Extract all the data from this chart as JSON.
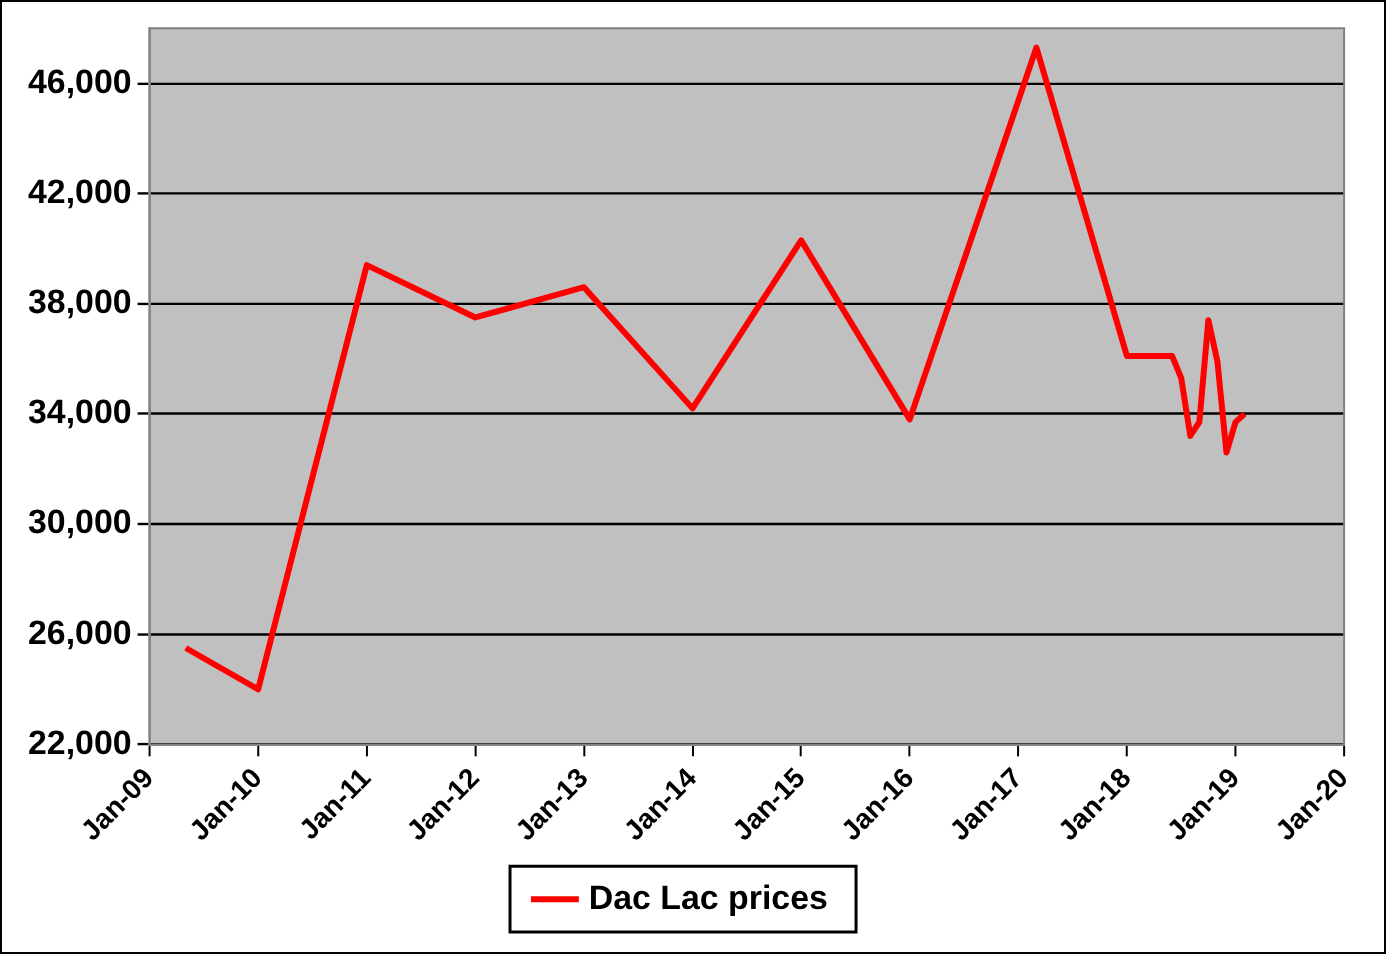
{
  "chart_data": {
    "type": "line",
    "legend": "bottom",
    "grid": "y",
    "marker": "none",
    "line_style": "solid",
    "x": [
      "2009-05",
      "2010-01",
      "2011-01",
      "2012-01",
      "2013-01",
      "2014-01",
      "2015-01",
      "2016-01",
      "2017-03",
      "2018-01",
      "2018-06",
      "2018-07",
      "2018-08",
      "2018-09",
      "2018-10",
      "2018-11",
      "2018-12",
      "2019-01",
      "2019-02"
    ],
    "series": [
      {
        "name": "Dac Lac prices",
        "color": "#ff0000",
        "values": [
          25500,
          24000,
          39400,
          37500,
          38600,
          34200,
          40300,
          33800,
          47300,
          36100,
          36100,
          35300,
          33200,
          33700,
          37400,
          35900,
          32600,
          33700,
          34000
        ]
      }
    ],
    "xlim": [
      "2009-01",
      "2020-01"
    ],
    "xticks": [
      {
        "value": "2009-01",
        "label": "Jan-09"
      },
      {
        "value": "2010-01",
        "label": "Jan-10"
      },
      {
        "value": "2011-01",
        "label": "Jan-11"
      },
      {
        "value": "2012-01",
        "label": "Jan-12"
      },
      {
        "value": "2013-01",
        "label": "Jan-13"
      },
      {
        "value": "2014-01",
        "label": "Jan-14"
      },
      {
        "value": "2015-01",
        "label": "Jan-15"
      },
      {
        "value": "2016-01",
        "label": "Jan-16"
      },
      {
        "value": "2017-01",
        "label": "Jan-17"
      },
      {
        "value": "2018-01",
        "label": "Jan-18"
      },
      {
        "value": "2019-01",
        "label": "Jan-19"
      },
      {
        "value": "2020-01",
        "label": "Jan-20"
      }
    ],
    "ylim": [
      22000,
      48000
    ],
    "yticks": [
      {
        "value": 22000,
        "label": "22,000"
      },
      {
        "value": 26000,
        "label": "26,000"
      },
      {
        "value": 30000,
        "label": "30,000"
      },
      {
        "value": 34000,
        "label": "34,000"
      },
      {
        "value": 38000,
        "label": "38,000"
      },
      {
        "value": 42000,
        "label": "42,000"
      },
      {
        "value": 46000,
        "label": "46,000"
      }
    ]
  }
}
